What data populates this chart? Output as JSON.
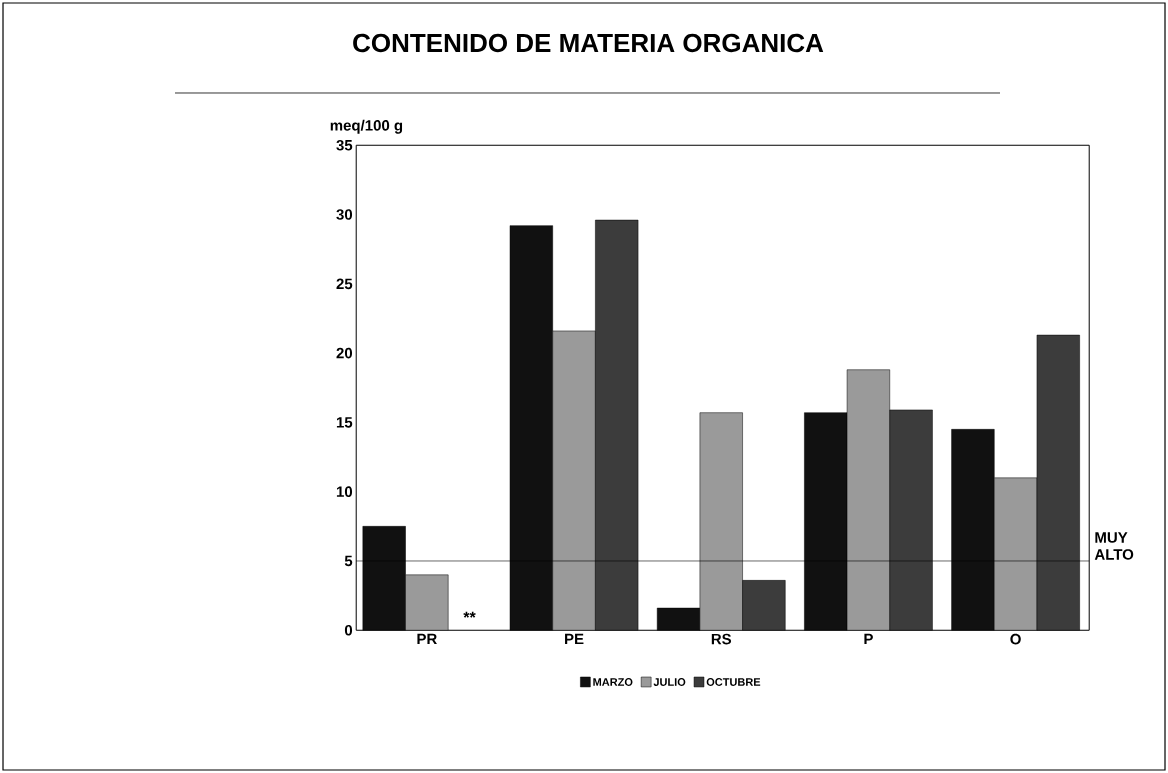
{
  "chart_data": {
    "type": "bar",
    "title": "CONTENIDO DE MATERIA ORGANICA",
    "ylabel": "meq/100 g",
    "categories": [
      "PR",
      "PE",
      "RS",
      "P",
      "O"
    ],
    "series": [
      {
        "name": "MARZO",
        "color": "#111111",
        "values": [
          7.5,
          29.2,
          1.6,
          15.7,
          14.5
        ]
      },
      {
        "name": "JULIO",
        "color": "#9a9a9a",
        "values": [
          4.0,
          21.6,
          15.7,
          18.8,
          11.0
        ]
      },
      {
        "name": "OCTUBRE",
        "color": "#3c3c3c",
        "values": [
          null,
          29.6,
          3.6,
          15.9,
          21.3
        ]
      }
    ],
    "ylim": [
      0,
      35
    ],
    "yticks": [
      0,
      5,
      10,
      15,
      20,
      25,
      30,
      35
    ],
    "ref_lines": [
      {
        "axis": "y",
        "value": 5,
        "label": "MUY ALTO"
      }
    ],
    "annotations": [
      "**"
    ],
    "legend": "bottom",
    "grid": false
  }
}
